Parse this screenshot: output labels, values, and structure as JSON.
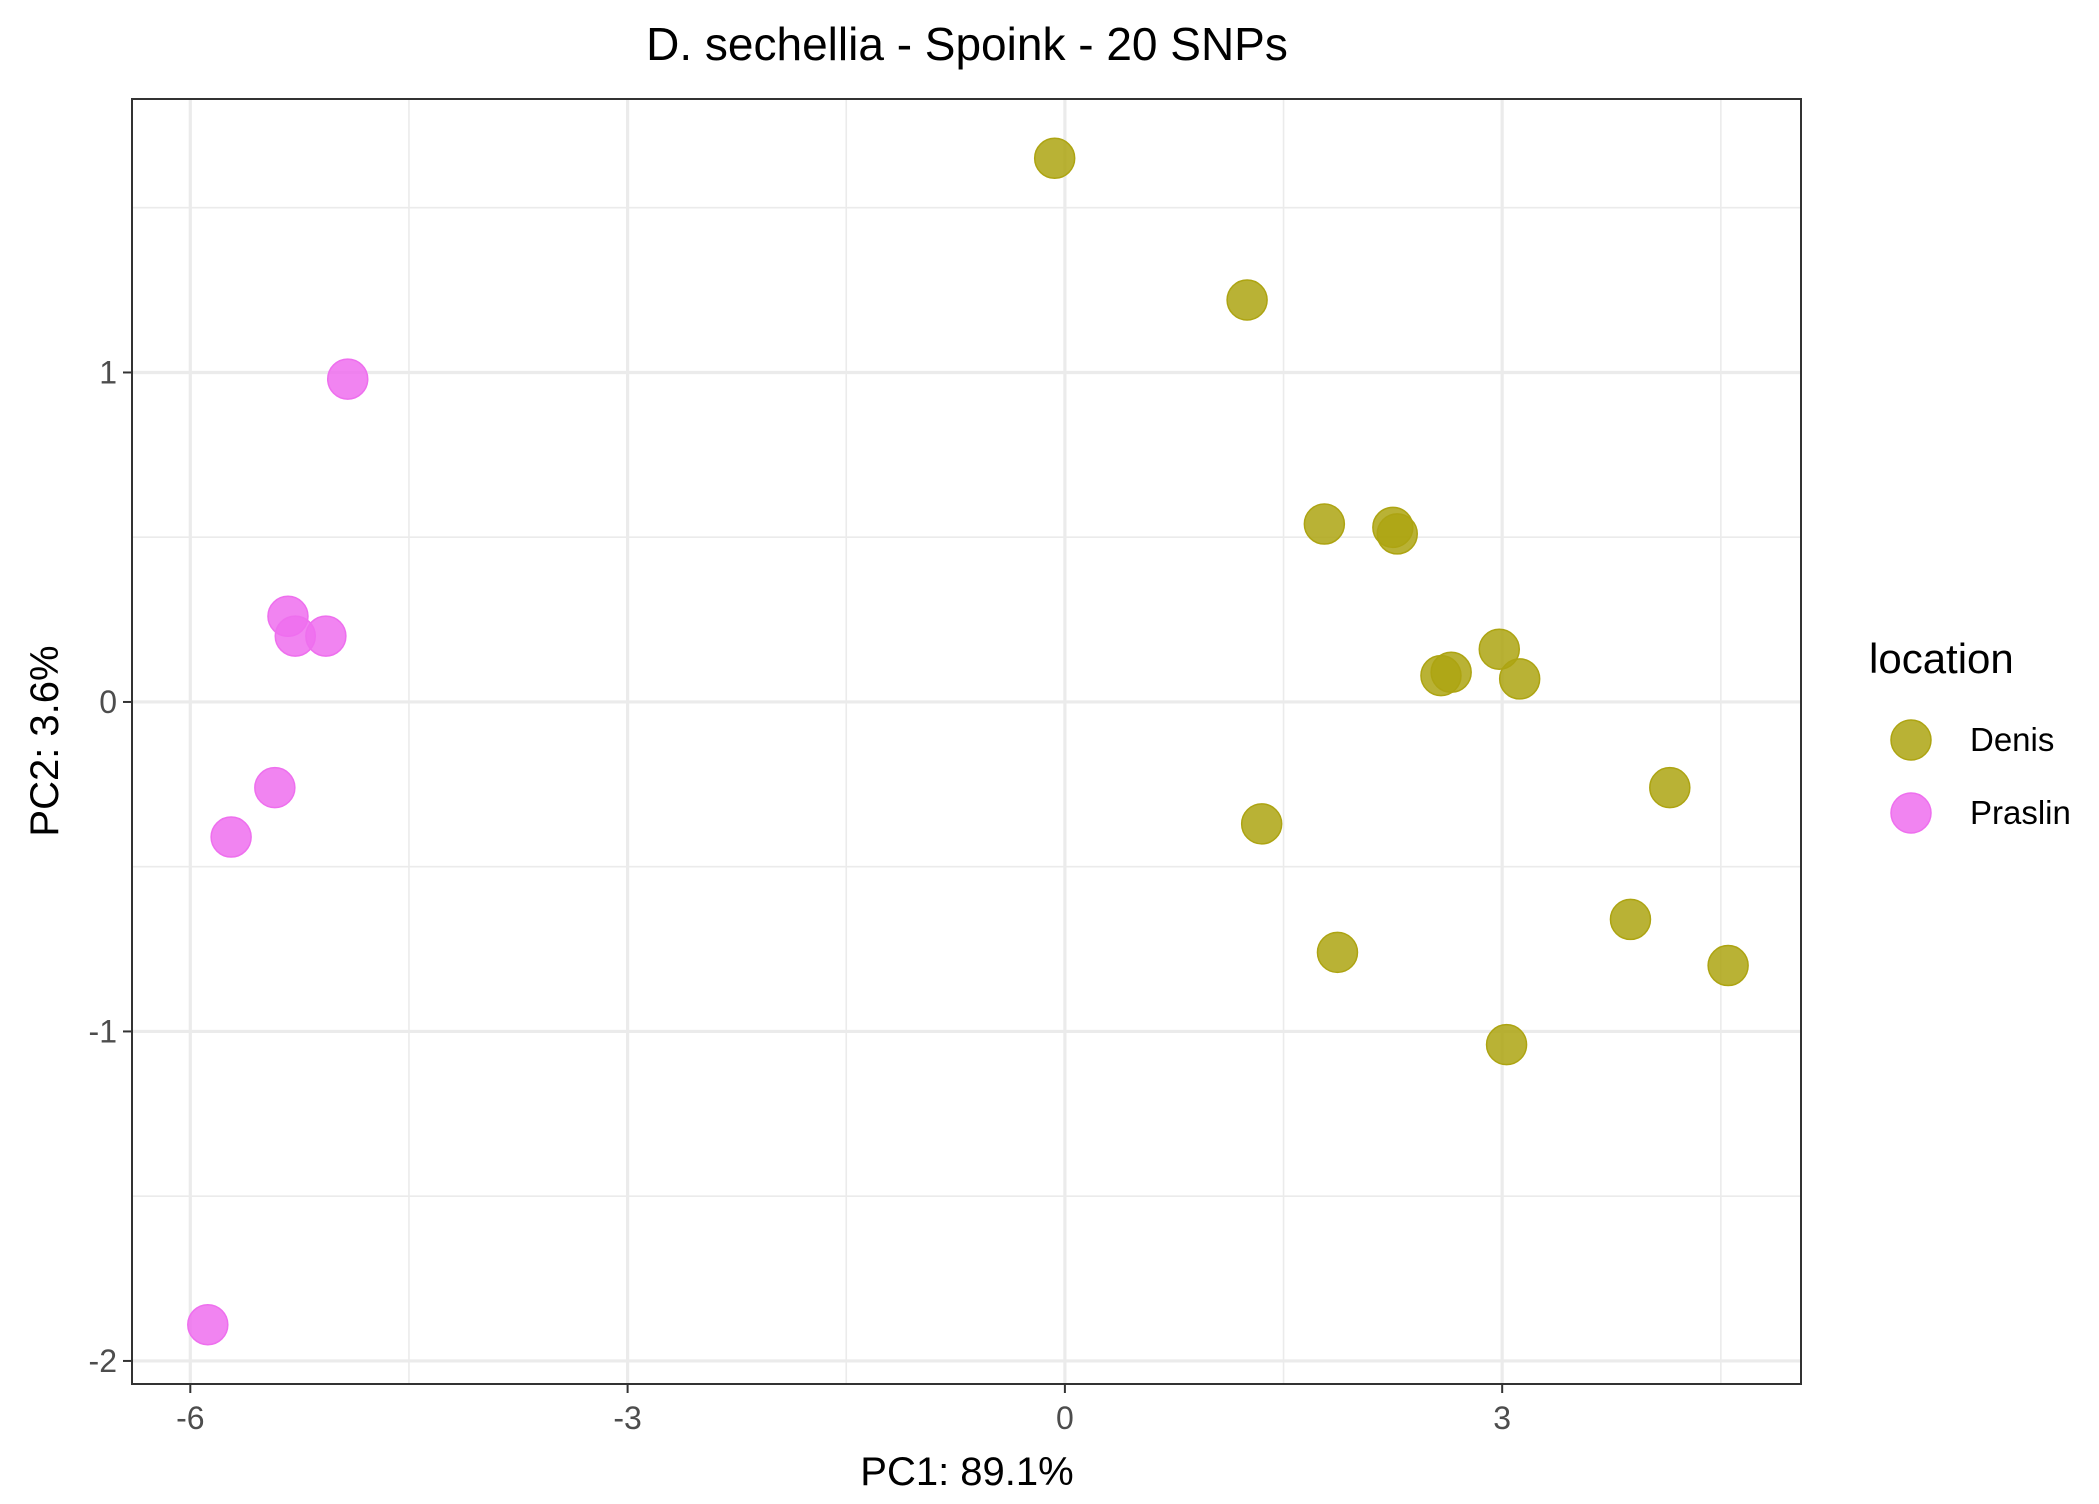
{
  "chart_data": {
    "type": "scatter",
    "title": "D. sechellia - Spoink - 20 SNPs",
    "xlabel": "PC1: 89.1%",
    "ylabel": "PC2: 3.6%",
    "xlim": [
      -6.4,
      5.05
    ],
    "ylim": [
      -2.07,
      1.83
    ],
    "x_ticks": [
      -6,
      -3,
      0,
      3
    ],
    "x_tick_labels": [
      "-6",
      "-3",
      "0",
      "3"
    ],
    "y_ticks": [
      -2,
      -1,
      0,
      1
    ],
    "y_tick_labels": [
      "-2",
      "-1",
      "0",
      "1"
    ],
    "x_minor_grid": [
      -4.5,
      -1.5,
      1.5,
      4.5
    ],
    "y_minor_grid": [
      -1.5,
      -0.5,
      0.5,
      1.5
    ],
    "grid": true,
    "legend": {
      "title": "location",
      "placement": "right"
    },
    "series": [
      {
        "name": "Denis",
        "color": "#ADA412",
        "points": [
          {
            "x": -0.07,
            "y": 1.65
          },
          {
            "x": 1.25,
            "y": 1.22
          },
          {
            "x": 1.78,
            "y": 0.54
          },
          {
            "x": 2.25,
            "y": 0.53
          },
          {
            "x": 2.28,
            "y": 0.51
          },
          {
            "x": 2.58,
            "y": 0.08
          },
          {
            "x": 2.65,
            "y": 0.09
          },
          {
            "x": 2.98,
            "y": 0.16
          },
          {
            "x": 3.12,
            "y": 0.07
          },
          {
            "x": 4.15,
            "y": -0.26
          },
          {
            "x": 1.35,
            "y": -0.37
          },
          {
            "x": 1.87,
            "y": -0.76
          },
          {
            "x": 3.88,
            "y": -0.66
          },
          {
            "x": 4.55,
            "y": -0.8
          },
          {
            "x": 3.03,
            "y": -1.04
          }
        ]
      },
      {
        "name": "Praslin",
        "color": "#EE6FEE",
        "points": [
          {
            "x": -4.92,
            "y": 0.98
          },
          {
            "x": -5.33,
            "y": 0.26
          },
          {
            "x": -5.28,
            "y": 0.2
          },
          {
            "x": -5.07,
            "y": 0.2
          },
          {
            "x": -5.42,
            "y": -0.26
          },
          {
            "x": -5.72,
            "y": -0.41
          },
          {
            "x": -5.88,
            "y": -1.89
          }
        ]
      }
    ]
  }
}
